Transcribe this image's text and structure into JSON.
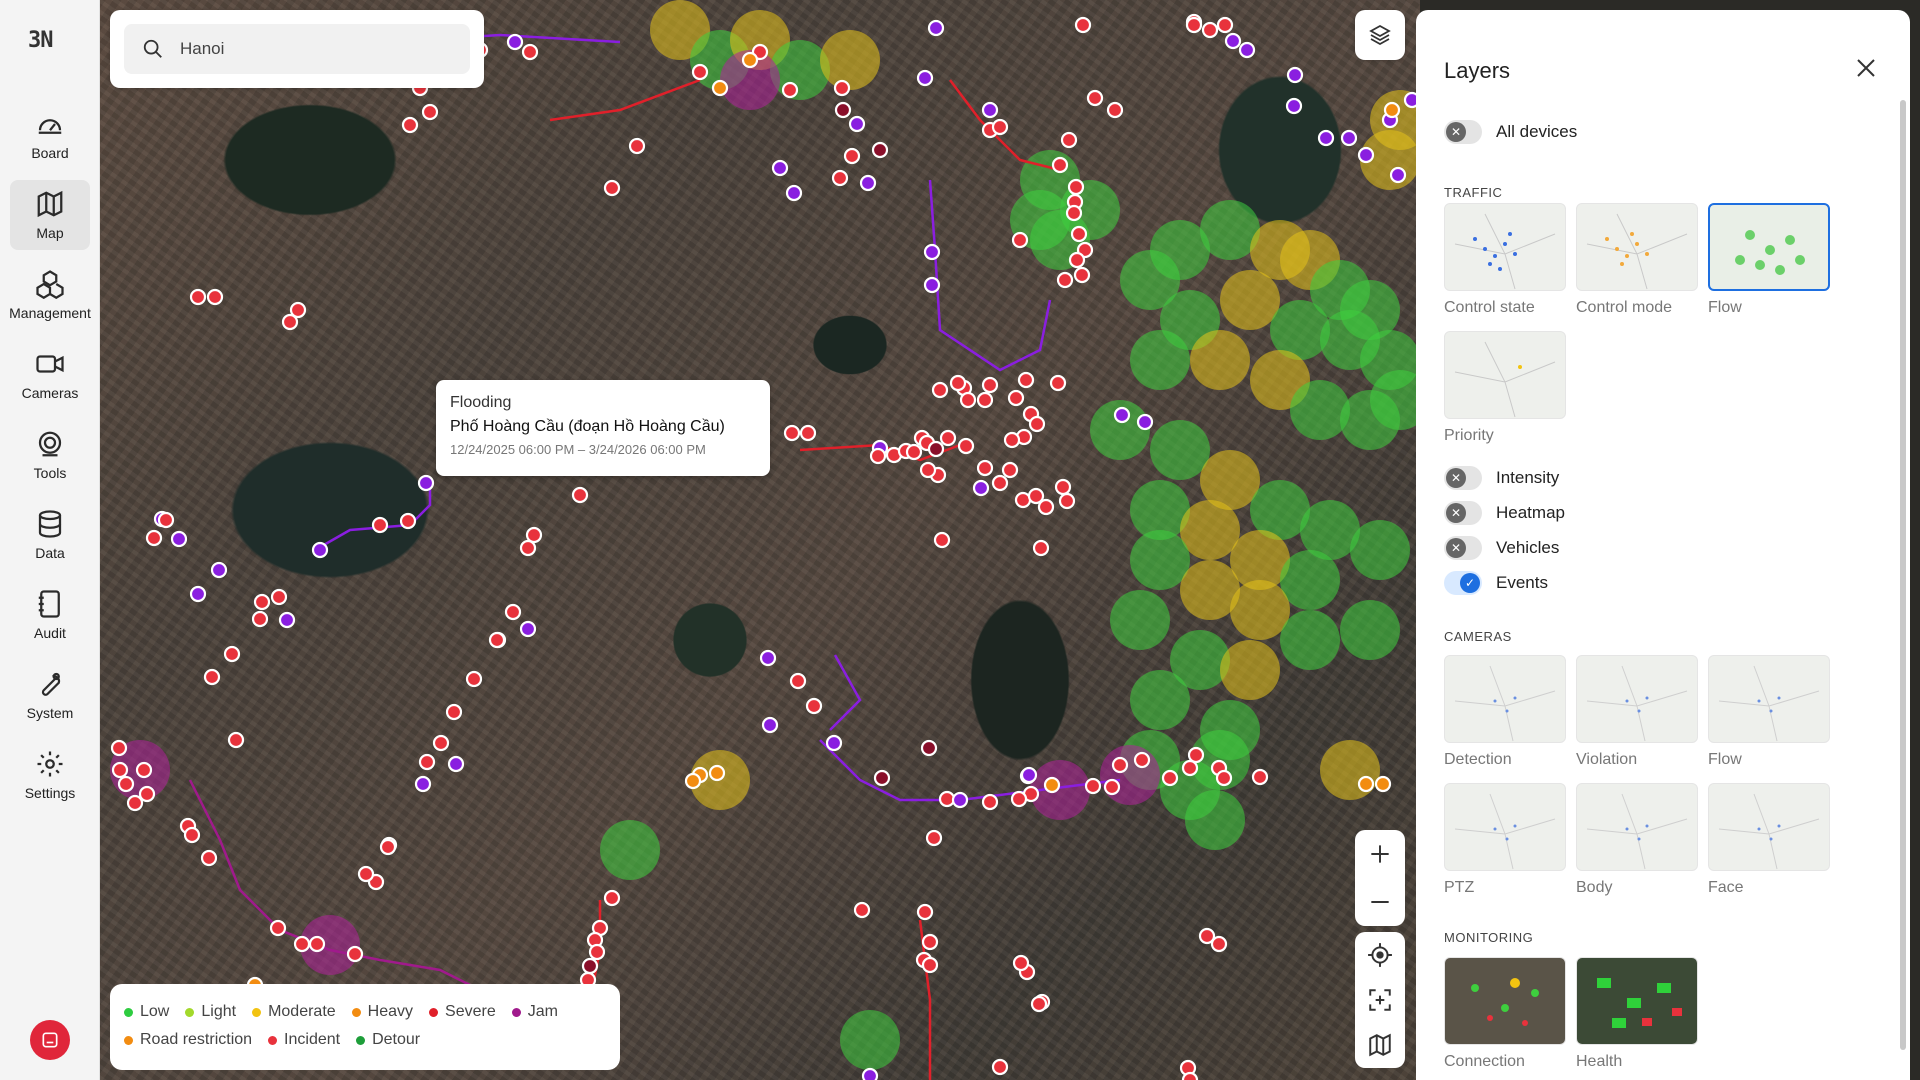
{
  "sidebar": {
    "logo": "3N",
    "items": [
      {
        "label": "Board",
        "icon": "gauge-icon"
      },
      {
        "label": "Map",
        "icon": "map-icon"
      },
      {
        "label": "Management",
        "icon": "cubes-icon"
      },
      {
        "label": "Cameras",
        "icon": "camera-icon"
      },
      {
        "label": "Tools",
        "icon": "radar-icon"
      },
      {
        "label": "Data",
        "icon": "database-icon"
      },
      {
        "label": "Audit",
        "icon": "notebook-icon"
      },
      {
        "label": "System",
        "icon": "wrench-icon"
      },
      {
        "label": "Settings",
        "icon": "gear-icon"
      }
    ],
    "active": "Map"
  },
  "search": {
    "value": "Hanoi"
  },
  "tooltip": {
    "type": "Flooding",
    "location": "Phố Hoàng Cầu (đoạn Hồ Hoàng Cầu)",
    "period": "12/24/2025 06:00 PM – 3/24/2026 06:00 PM"
  },
  "legend": {
    "row1": [
      {
        "label": "Low",
        "color": "#2ecc40"
      },
      {
        "label": "Light",
        "color": "#a3d92b"
      },
      {
        "label": "Moderate",
        "color": "#f2c311"
      },
      {
        "label": "Heavy",
        "color": "#f28c11"
      },
      {
        "label": "Severe",
        "color": "#e0202a"
      },
      {
        "label": "Jam",
        "color": "#a01a8c"
      }
    ],
    "row2": [
      {
        "label": "Road restriction",
        "color": "#f28c11"
      },
      {
        "label": "Incident",
        "color": "#e8323c"
      },
      {
        "label": "Detour",
        "color": "#1e9e3a"
      }
    ]
  },
  "panel": {
    "title": "Layers",
    "all_devices": {
      "label": "All devices",
      "on": false
    },
    "traffic_label": "TRAFFIC",
    "traffic_thumbs": [
      {
        "label": "Control state",
        "selected": false
      },
      {
        "label": "Control mode",
        "selected": false
      },
      {
        "label": "Flow",
        "selected": true
      },
      {
        "label": "Priority",
        "selected": false
      }
    ],
    "toggles": [
      {
        "label": "Intensity",
        "on": false
      },
      {
        "label": "Heatmap",
        "on": false
      },
      {
        "label": "Vehicles",
        "on": false
      },
      {
        "label": "Events",
        "on": true
      }
    ],
    "cameras_label": "CAMERAS",
    "camera_thumbs": [
      {
        "label": "Detection"
      },
      {
        "label": "Violation"
      },
      {
        "label": "Flow"
      },
      {
        "label": "PTZ"
      },
      {
        "label": "Body"
      },
      {
        "label": "Face"
      }
    ],
    "monitoring_label": "MONITORING",
    "monitoring_thumbs": [
      {
        "label": "Connection"
      },
      {
        "label": "Health"
      }
    ]
  },
  "colors": {
    "accent": "#1e6fe0",
    "incident": "#e8323c",
    "restriction": "#f28c11",
    "event_purple": "#8a1ee0",
    "flow_green": "#3ecf3e",
    "flow_yellow": "#e6c21a"
  }
}
